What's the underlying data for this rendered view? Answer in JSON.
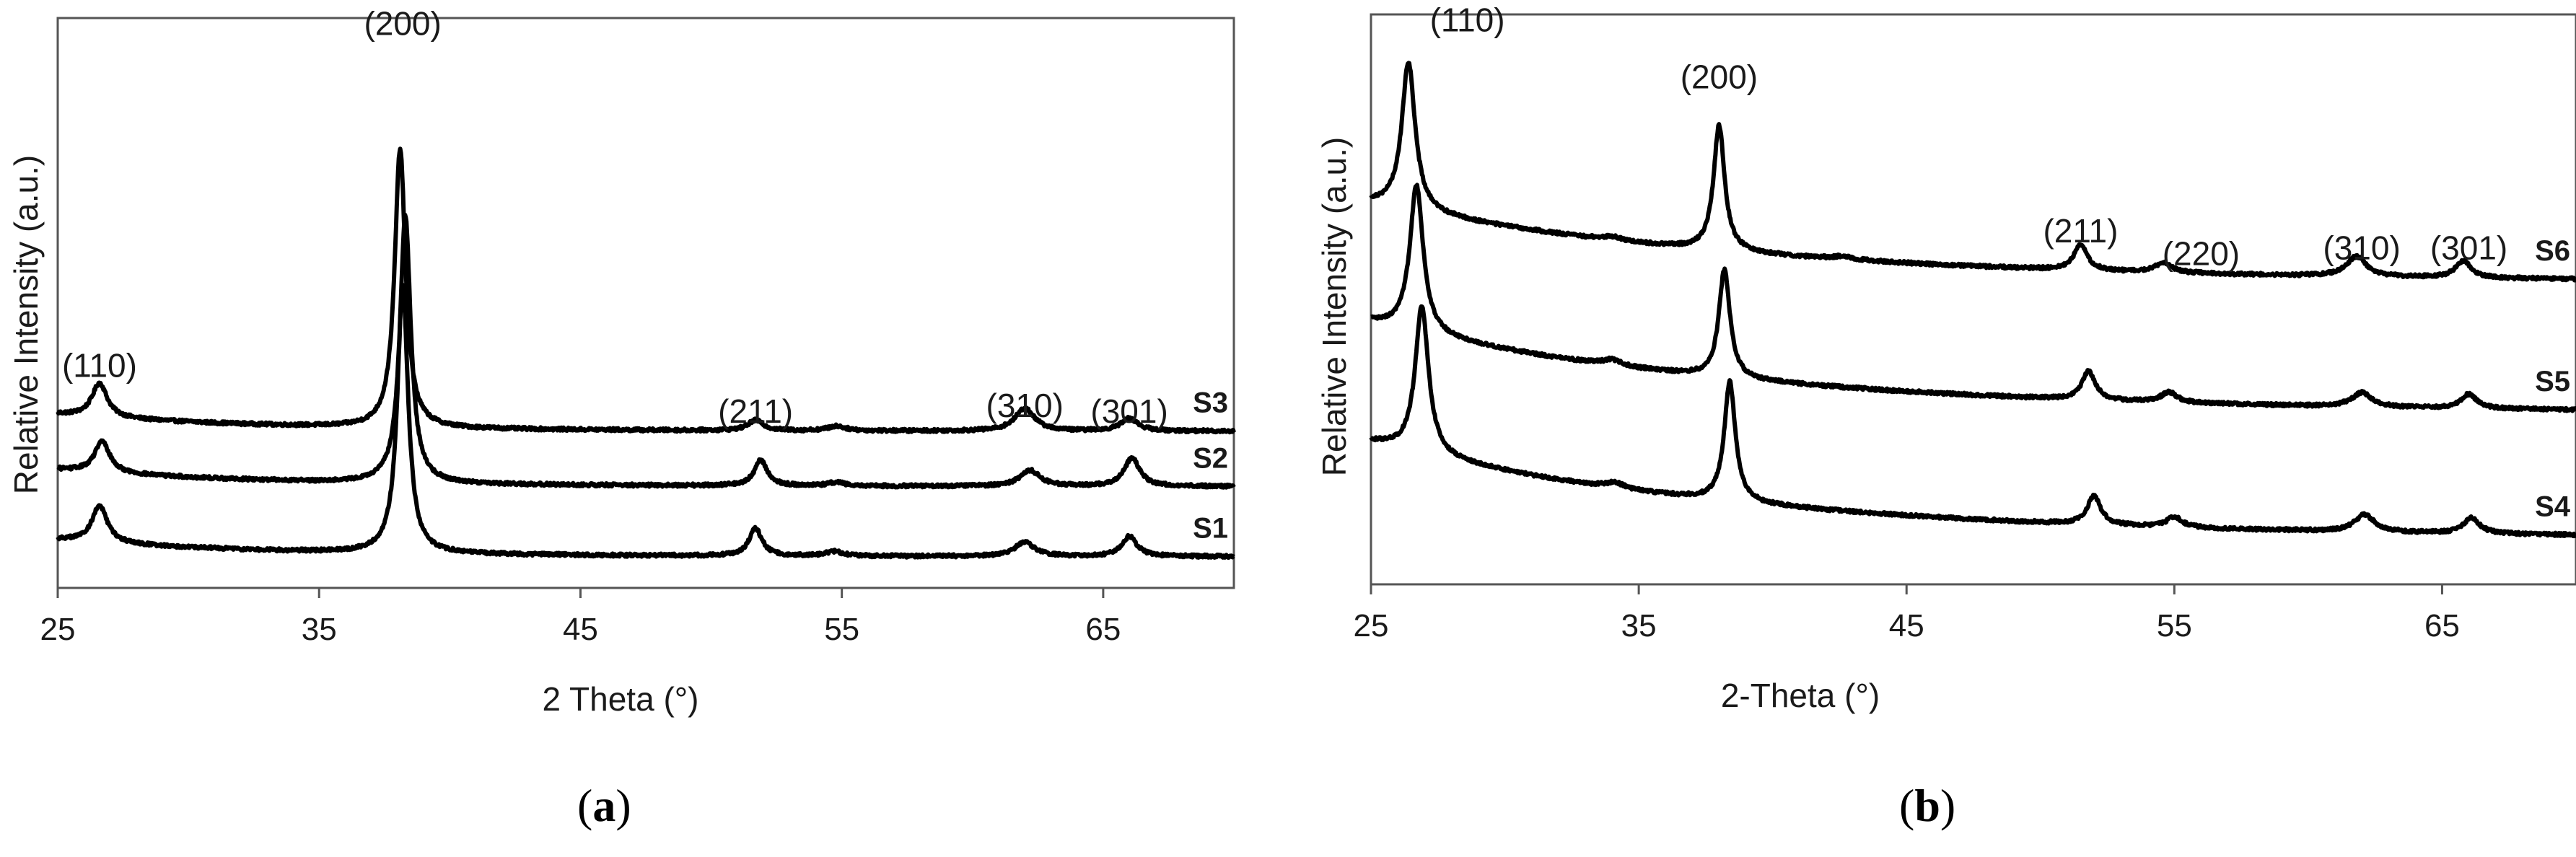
{
  "chart_data": [
    {
      "panel": "(a)",
      "panel_letter": "a",
      "type": "line",
      "xlabel": "2 Theta (°)",
      "ylabel": "Relative Intensity (a.u.)",
      "xlim": [
        25,
        70
      ],
      "xticks": [
        25,
        35,
        45,
        55,
        65
      ],
      "ylim": [
        0,
        100
      ],
      "peak_labels": [
        {
          "text": "(110)",
          "x": 26.6,
          "y": 37
        },
        {
          "text": "(200)",
          "x": 38.2,
          "y": 97
        },
        {
          "text": "(211)",
          "x": 51.7,
          "y": 29
        },
        {
          "text": "(310)",
          "x": 62.0,
          "y": 30
        },
        {
          "text": "(301)",
          "x": 66.0,
          "y": 29
        }
      ],
      "series": [
        {
          "name": "S3",
          "baseline": 27.5,
          "tail": 3,
          "decay": 8,
          "peaks": [
            [
              26.6,
              6,
              0.35
            ],
            [
              38.1,
              49,
              0.25
            ],
            [
              51.7,
              1.8,
              0.35
            ],
            [
              54.8,
              0.8,
              0.4
            ],
            [
              62.0,
              4,
              0.45
            ],
            [
              66.0,
              2.2,
              0.4
            ]
          ]
        },
        {
          "name": "S2",
          "baseline": 17.8,
          "tail": 3,
          "decay": 8,
          "peaks": [
            [
              26.7,
              5.5,
              0.35
            ],
            [
              38.3,
              47,
              0.25
            ],
            [
              51.9,
              4.5,
              0.3
            ],
            [
              54.8,
              0.6,
              0.4
            ],
            [
              62.2,
              2.8,
              0.45
            ],
            [
              66.1,
              5,
              0.35
            ]
          ]
        },
        {
          "name": "S1",
          "baseline": 5.5,
          "tail": 3,
          "decay": 8,
          "peaks": [
            [
              26.6,
              6.5,
              0.35
            ],
            [
              38.2,
              47,
              0.25
            ],
            [
              51.7,
              4.8,
              0.3
            ],
            [
              54.7,
              0.8,
              0.4
            ],
            [
              62.0,
              2.5,
              0.45
            ],
            [
              66.0,
              3.5,
              0.35
            ]
          ]
        }
      ]
    },
    {
      "panel": "(b)",
      "panel_letter": "b",
      "type": "line",
      "xlabel": "2-Theta (°)",
      "ylabel": "Relative Intensity (a.u.)",
      "xlim": [
        25,
        70
      ],
      "xticks": [
        25,
        35,
        45,
        55,
        65
      ],
      "ylim": [
        0,
        100
      ],
      "peak_labels": [
        {
          "text": "(110)",
          "x": 28.6,
          "y": 97
        },
        {
          "text": "(200)",
          "x": 38.0,
          "y": 87
        },
        {
          "text": "(211)",
          "x": 51.5,
          "y": 60
        },
        {
          "text": "(220)",
          "x": 56.0,
          "y": 56
        },
        {
          "text": "(310)",
          "x": 62.0,
          "y": 57
        },
        {
          "text": "(301)",
          "x": 66.0,
          "y": 57
        }
      ],
      "series": [
        {
          "name": "S6",
          "baseline": 53,
          "tail": 14,
          "decay": 14,
          "peaks": [
            [
              26.4,
              26,
              0.3
            ],
            [
              34.0,
              0.6,
              0.4
            ],
            [
              38.0,
              22,
              0.25
            ],
            [
              42.6,
              0.5,
              0.5
            ],
            [
              51.5,
              4.5,
              0.3
            ],
            [
              54.6,
              1.8,
              0.35
            ],
            [
              61.8,
              3.5,
              0.45
            ],
            [
              65.8,
              3,
              0.35
            ]
          ]
        },
        {
          "name": "S5",
          "baseline": 30,
          "tail": 16,
          "decay": 14,
          "peaks": [
            [
              26.7,
              26,
              0.3
            ],
            [
              34.0,
              1,
              0.4
            ],
            [
              38.2,
              19,
              0.25
            ],
            [
              51.8,
              5,
              0.3
            ],
            [
              54.8,
              1.8,
              0.35
            ],
            [
              62.0,
              2.5,
              0.45
            ],
            [
              66.0,
              2.5,
              0.35
            ]
          ]
        },
        {
          "name": "S4",
          "baseline": 8,
          "tail": 17,
          "decay": 14,
          "peaks": [
            [
              26.9,
              26,
              0.3
            ],
            [
              34.1,
              1,
              0.4
            ],
            [
              38.4,
              21,
              0.25
            ],
            [
              52.0,
              5,
              0.3
            ],
            [
              55.0,
              1.8,
              0.35
            ],
            [
              62.1,
              3,
              0.45
            ],
            [
              66.1,
              2.8,
              0.35
            ]
          ]
        }
      ]
    }
  ]
}
